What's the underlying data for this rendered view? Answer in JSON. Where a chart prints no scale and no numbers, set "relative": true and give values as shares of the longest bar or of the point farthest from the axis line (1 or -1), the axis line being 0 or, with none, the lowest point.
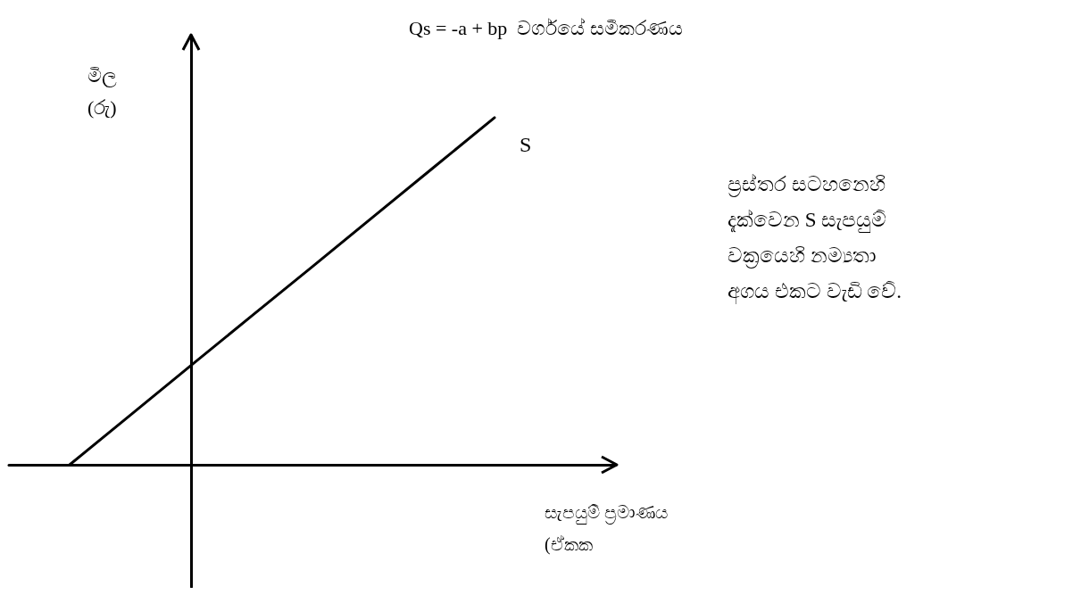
{
  "chart_data": {
    "type": "line",
    "title": "Qs = -a + bp  වර්ගයේ සමීකරණය",
    "xlabel": "සැපයුම් ප්‍රමාණය\n(ඒකක",
    "ylabel": "මිල\n(රු)",
    "relative": true,
    "categories": [
      null,
      null,
      null,
      null,
      null,
      null,
      null,
      null,
      null,
      null,
      null
    ],
    "series": [
      {
        "name": "S",
        "color": "#000000",
        "values": [
          null,
          0,
          0.143,
          0.286,
          0.429,
          0.571,
          0.714,
          0.857,
          1,
          null,
          null
        ]
      }
    ],
    "annotations": [
      "ප්‍රස්තර සටහනෙහි දැක්වෙන S සැපයුම් වක්‍රයෙහි නම්‍යතා අගය එකට වැඩි වේ."
    ],
    "marker": "none",
    "grid": false,
    "legend": false,
    "tick_labels": false
  }
}
